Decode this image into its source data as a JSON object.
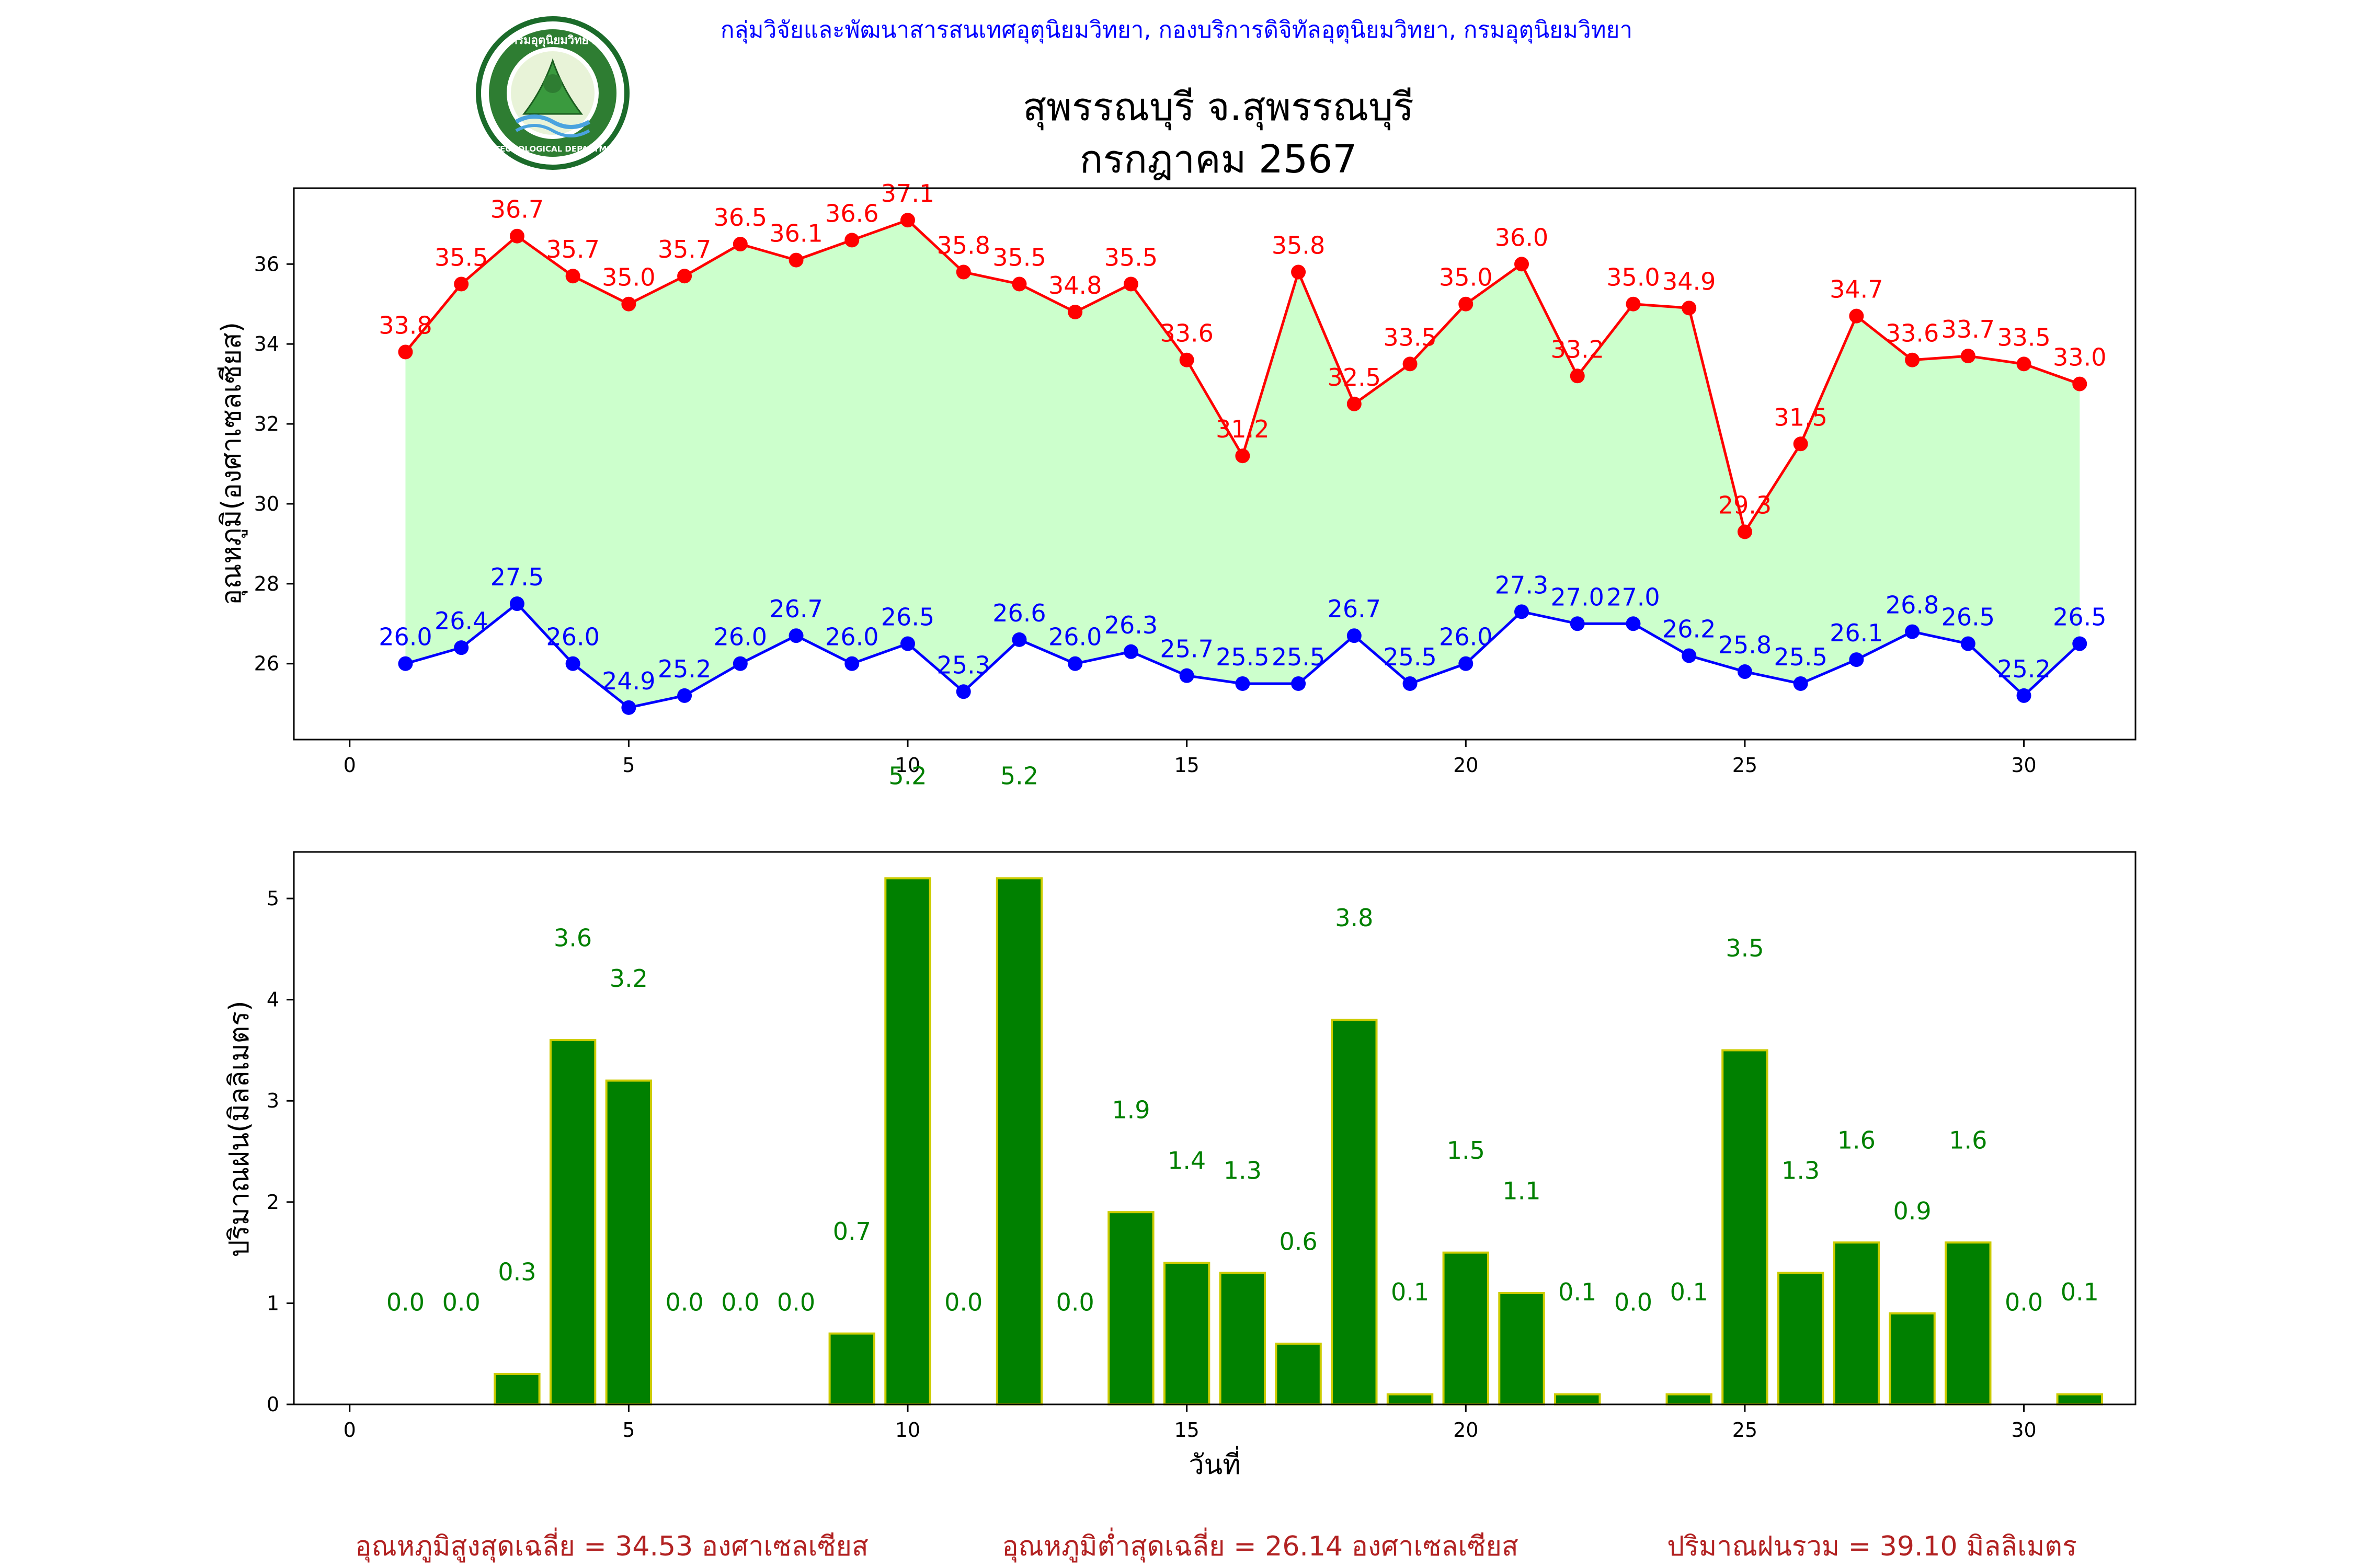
{
  "header": {
    "agency": "กลุ่มวิจัยและพัฒนาสารสนเทศอุตุนิยมวิทยา, กองบริการดิจิทัลอุตุนิยมวิทยา, กรมอุตุนิยมวิทยา",
    "station": "สุพรรณบุรี จ.สุพรรณบุรี",
    "period": "กรกฎาคม 2567",
    "logo_text_top": "กรมอุตุนิยมวิทยา",
    "logo_text_bottom": "METEOROLOGICAL DEPARTMENT"
  },
  "colors": {
    "tmax": "#ff0000",
    "tmin": "#0000ff",
    "fill": "#ccffcc",
    "rain_bar": "#008000",
    "rain_edge": "#cccc00",
    "summary": "#b22222",
    "header": "#0000ff"
  },
  "chart_data": [
    {
      "type": "line",
      "ylabel": "อุณหภูมิ(องศาเซลเซียส)",
      "xlabel": "",
      "xlim": [
        -1,
        32
      ],
      "ylim": [
        24.1,
        37.9
      ],
      "xticks": [
        0,
        5,
        10,
        15,
        20,
        25,
        30
      ],
      "yticks": [
        26,
        28,
        30,
        32,
        34,
        36
      ],
      "x": [
        1,
        2,
        3,
        4,
        5,
        6,
        7,
        8,
        9,
        10,
        11,
        12,
        13,
        14,
        15,
        16,
        17,
        18,
        19,
        20,
        21,
        22,
        23,
        24,
        25,
        26,
        27,
        28,
        29,
        30,
        31
      ],
      "series": [
        {
          "key": "tmax",
          "values": [
            33.8,
            35.5,
            36.7,
            35.7,
            35.0,
            35.7,
            36.5,
            36.1,
            36.6,
            37.1,
            35.8,
            35.5,
            34.8,
            35.5,
            33.6,
            31.2,
            35.8,
            32.5,
            33.5,
            35.0,
            36.0,
            33.2,
            35.0,
            34.9,
            29.3,
            31.5,
            34.7,
            33.6,
            33.7,
            33.5,
            33.0
          ]
        },
        {
          "key": "tmin",
          "values": [
            26.0,
            26.4,
            27.5,
            26.0,
            24.9,
            25.2,
            26.0,
            26.7,
            26.0,
            26.5,
            25.3,
            26.6,
            26.0,
            26.3,
            25.7,
            25.5,
            25.5,
            26.7,
            25.5,
            26.0,
            27.3,
            27.0,
            27.0,
            26.2,
            25.8,
            25.5,
            26.1,
            26.8,
            26.5,
            25.2,
            26.5
          ]
        }
      ]
    },
    {
      "type": "bar",
      "ylabel": "ปริมาณฝน(มิลลิเมตร)",
      "xlabel": "วันที่",
      "xlim": [
        -1,
        32
      ],
      "ylim": [
        0,
        5.46
      ],
      "xticks": [
        0,
        5,
        10,
        15,
        20,
        25,
        30
      ],
      "yticks": [
        0,
        1,
        2,
        3,
        4,
        5
      ],
      "x": [
        1,
        2,
        3,
        4,
        5,
        6,
        7,
        8,
        9,
        10,
        11,
        12,
        13,
        14,
        15,
        16,
        17,
        18,
        19,
        20,
        21,
        22,
        23,
        24,
        25,
        26,
        27,
        28,
        29,
        30,
        31
      ],
      "values": [
        0.0,
        0.0,
        0.3,
        3.6,
        3.2,
        0.0,
        0.0,
        0.0,
        0.7,
        5.2,
        0.0,
        5.2,
        0.0,
        1.9,
        1.4,
        1.3,
        0.6,
        3.8,
        0.1,
        1.5,
        1.1,
        0.1,
        0.0,
        0.1,
        3.5,
        1.3,
        1.6,
        0.9,
        1.6,
        0.0,
        0.1
      ]
    }
  ],
  "summary": {
    "tmax_avg": "อุณหภูมิสูงสุดเฉลี่ย = 34.53 องศาเซลเซียส",
    "tmin_avg": "อุณหภูมิต่ำสุดเฉลี่ย = 26.14 องศาเซลเซียส",
    "rain_total": "ปริมาณฝนรวม = 39.10 มิลลิเมตร"
  }
}
